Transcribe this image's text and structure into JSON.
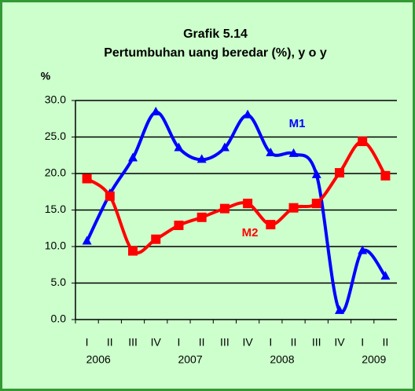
{
  "chart_data": {
    "type": "line",
    "title": "Grafik 5.14",
    "subtitle": "Pertumbuhan uang beredar  (%), y o y",
    "y_label": "%",
    "categories": [
      "I",
      "II",
      "III",
      "IV",
      "I",
      "II",
      "III",
      "IV",
      "I",
      "II",
      "III",
      "IV",
      "I",
      "II"
    ],
    "years": [
      "2006",
      "2007",
      "2008",
      "2009"
    ],
    "series": [
      {
        "name": "M1",
        "color": "#0000ff",
        "values": [
          10.7,
          17.2,
          22.1,
          28.4,
          23.5,
          21.9,
          23.5,
          28.0,
          22.8,
          22.7,
          19.8,
          1.2,
          9.4,
          5.9
        ]
      },
      {
        "name": "M2",
        "color": "#ff0000",
        "values": [
          19.3,
          16.9,
          9.4,
          11.0,
          12.9,
          14.0,
          15.2,
          15.9,
          13.0,
          15.3,
          15.9,
          20.1,
          24.4,
          19.7
        ]
      }
    ],
    "ylim": [
      0,
      30
    ],
    "yticks": [
      {
        "value": 0,
        "label": "0.0"
      },
      {
        "value": 5,
        "label": "5.0"
      },
      {
        "value": 10,
        "label": "10.0"
      },
      {
        "value": 15,
        "label": "15.0"
      },
      {
        "value": 20,
        "label": "20.0"
      },
      {
        "value": 25,
        "label": "25.0"
      },
      {
        "value": 30,
        "label": "30.0"
      }
    ],
    "grid": true
  }
}
